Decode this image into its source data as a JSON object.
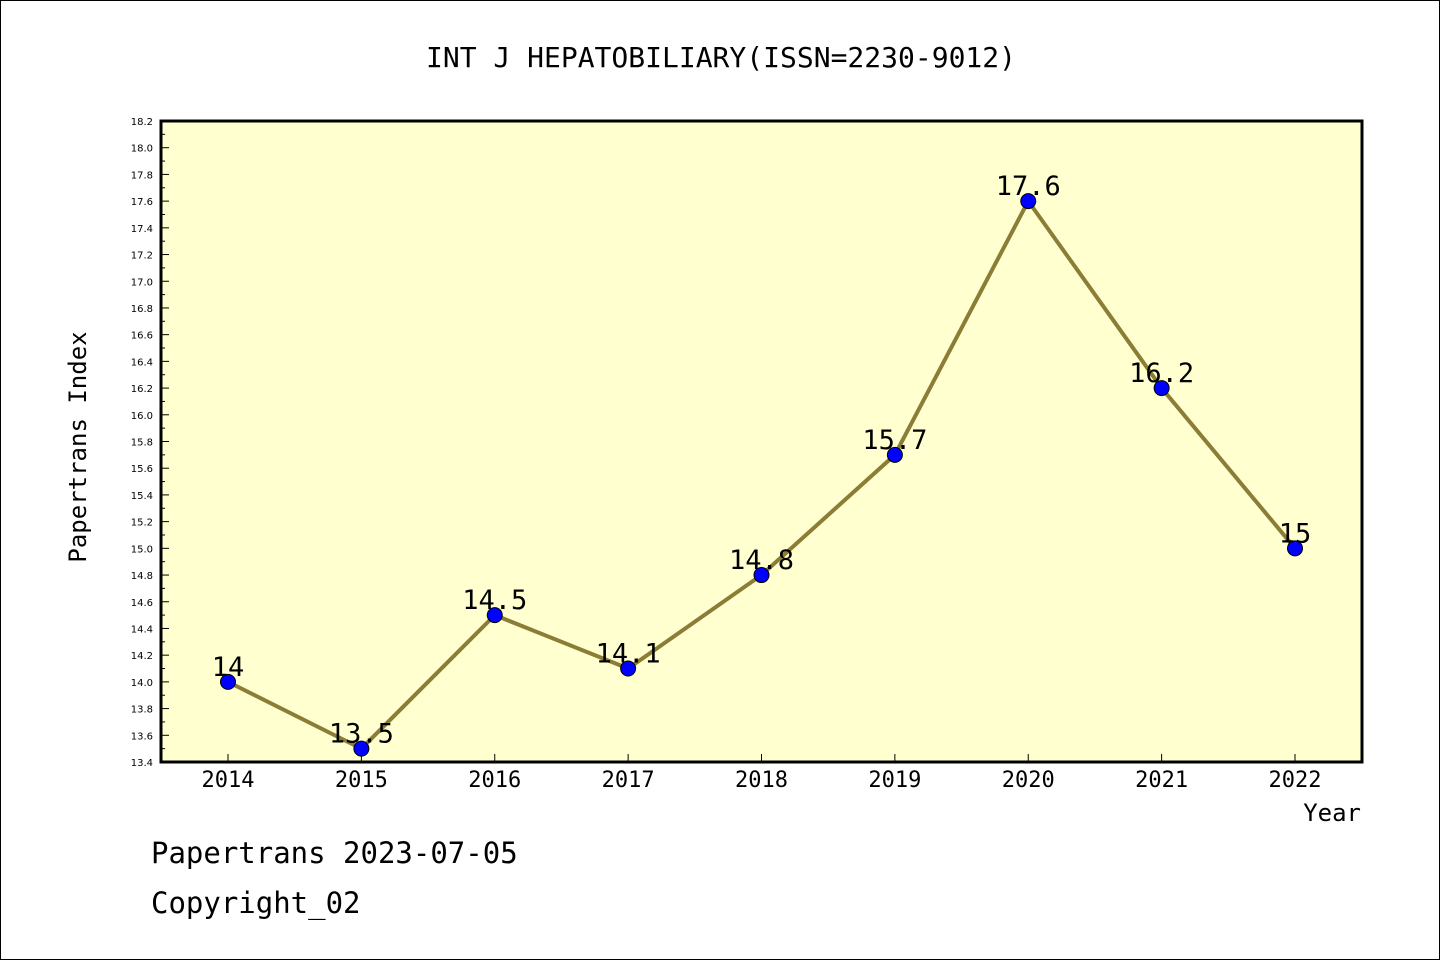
{
  "chart_data": {
    "type": "line",
    "title": "INT J HEPATOBILIARY(ISSN=2230-9012)",
    "xlabel": "Year",
    "ylabel": "Papertrans Index",
    "x": [
      "2014",
      "2015",
      "2016",
      "2017",
      "2018",
      "2019",
      "2020",
      "2021",
      "2022"
    ],
    "series": [
      {
        "values": [
          14,
          13.5,
          14.5,
          14.1,
          14.8,
          15.7,
          17.6,
          16.2,
          15
        ],
        "labels": [
          "14",
          "13.5",
          "14.5",
          "14.1",
          "14.8",
          "15.7",
          "17.6",
          "16.2",
          "15"
        ],
        "line_color": "#8b7d35",
        "marker_color": "#0000ff"
      }
    ],
    "ylim": [
      13.4,
      18.2
    ],
    "yticks": [
      "13.4",
      "13.6",
      "13.8",
      "14.0",
      "14.2",
      "14.4",
      "14.6",
      "14.8",
      "15.0",
      "15.2",
      "15.4",
      "15.6",
      "15.8",
      "16.0",
      "16.2",
      "16.4",
      "16.6",
      "16.8",
      "17.0",
      "17.2",
      "17.4",
      "17.6",
      "17.8",
      "18.0",
      "18.2"
    ],
    "plot_background": "#ffffd0",
    "grid": false,
    "legend": "none"
  },
  "footer": {
    "line1": "Papertrans 2023-07-05",
    "line2": "Copyright_02"
  }
}
